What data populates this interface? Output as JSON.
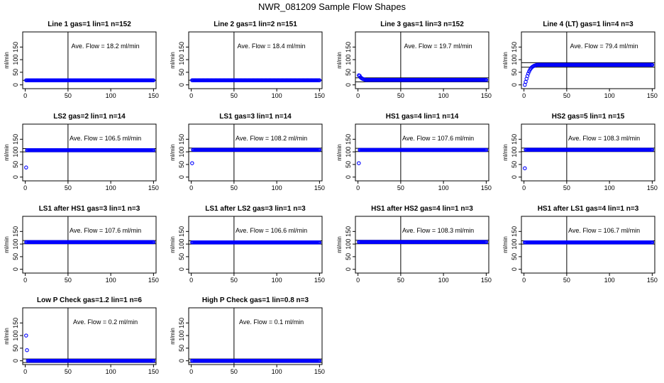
{
  "figure_title": "NWR_081209  Sample Flow Shapes",
  "colors": {
    "points": "#0000ff",
    "axes": "#000000",
    "background": "#ffffff"
  },
  "chart_data": [
    {
      "type": "scatter",
      "title": "Line 1 gas=1 lin=1 n=152",
      "ylabel": "ml/min",
      "xlim": [
        -3,
        153
      ],
      "ylim": [
        -15,
        210
      ],
      "xticks": [
        "0",
        "50",
        "100",
        "150"
      ],
      "yticks": [
        "0",
        "50",
        "100",
        "150"
      ],
      "avg_label": "Ave. Flow =  18.2  ml/min",
      "hlines": [
        18.2
      ],
      "vline": 50,
      "series_value": 18.2,
      "early_points": []
    },
    {
      "type": "scatter",
      "title": "Line 2 gas=1 lin=2 n=151",
      "ylabel": "ml/min",
      "xlim": [
        -3,
        153
      ],
      "ylim": [
        -15,
        210
      ],
      "xticks": [
        "0",
        "50",
        "100",
        "150"
      ],
      "yticks": [
        "0",
        "50",
        "100",
        "150"
      ],
      "avg_label": "Ave. Flow =  18.4  ml/min",
      "hlines": [
        18.4
      ],
      "vline": 50,
      "series_value": 18.4,
      "early_points": []
    },
    {
      "type": "scatter",
      "title": "Line 3 gas=1 lin=3 n=152",
      "ylabel": "ml/min",
      "xlim": [
        -3,
        153
      ],
      "ylim": [
        -15,
        210
      ],
      "xticks": [
        "0",
        "50",
        "100",
        "150"
      ],
      "yticks": [
        "0",
        "50",
        "100",
        "150"
      ],
      "avg_label": "Ave. Flow =  19.7  ml/min",
      "hlines": [
        12,
        28
      ],
      "vline": 50,
      "series_value": 19.7,
      "early_points": [
        [
          1,
          38
        ],
        [
          2,
          36
        ],
        [
          3,
          30
        ],
        [
          4,
          27
        ],
        [
          5,
          25
        ],
        [
          6,
          23
        ],
        [
          7,
          22
        ],
        [
          8,
          21
        ]
      ]
    },
    {
      "type": "scatter",
      "title": "Line 4 (LT) gas=1 lin=4 n=3",
      "ylabel": "ml/min",
      "xlim": [
        -3,
        153
      ],
      "ylim": [
        -15,
        210
      ],
      "xticks": [
        "0",
        "50",
        "100",
        "150"
      ],
      "yticks": [
        "0",
        "50",
        "100",
        "150"
      ],
      "avg_label": "Ave. Flow =  79.4  ml/min",
      "hlines": [
        70,
        88
      ],
      "vline": 50,
      "series_value": 79.4,
      "early_points": [
        [
          1,
          0
        ],
        [
          2,
          12
        ],
        [
          3,
          24
        ],
        [
          4,
          35
        ],
        [
          5,
          45
        ],
        [
          6,
          53
        ],
        [
          7,
          60
        ],
        [
          8,
          65
        ],
        [
          9,
          69
        ],
        [
          10,
          72
        ],
        [
          11,
          74
        ],
        [
          12,
          76
        ],
        [
          13,
          77
        ],
        [
          14,
          78
        ]
      ]
    },
    {
      "type": "scatter",
      "title": "LS2 gas=2 lin=1 n=14",
      "ylabel": "ml/min",
      "xlim": [
        -3,
        153
      ],
      "ylim": [
        -15,
        210
      ],
      "xticks": [
        "0",
        "50",
        "100",
        "150"
      ],
      "yticks": [
        "0",
        "50",
        "100",
        "150"
      ],
      "avg_label": "Ave. Flow =  106.5  ml/min",
      "hlines": [
        100,
        113
      ],
      "vline": 50,
      "series_value": 106.5,
      "early_points": [
        [
          1,
          38
        ]
      ]
    },
    {
      "type": "scatter",
      "title": "LS1 gas=3 lin=1 n=14",
      "ylabel": "ml/min",
      "xlim": [
        -3,
        153
      ],
      "ylim": [
        -15,
        210
      ],
      "xticks": [
        "0",
        "50",
        "100",
        "150"
      ],
      "yticks": [
        "0",
        "50",
        "100",
        "150"
      ],
      "avg_label": "Ave. Flow =  108.2  ml/min",
      "hlines": [
        101,
        115
      ],
      "vline": 50,
      "series_value": 108.2,
      "early_points": [
        [
          1,
          55
        ]
      ]
    },
    {
      "type": "scatter",
      "title": "HS1 gas=4 lin=1 n=14",
      "ylabel": "ml/min",
      "xlim": [
        -3,
        153
      ],
      "ylim": [
        -15,
        210
      ],
      "xticks": [
        "0",
        "50",
        "100",
        "150"
      ],
      "yticks": [
        "0",
        "50",
        "100",
        "150"
      ],
      "avg_label": "Ave. Flow =  107.6  ml/min",
      "hlines": [
        101,
        114
      ],
      "vline": 50,
      "series_value": 107.6,
      "early_points": [
        [
          1,
          55
        ]
      ]
    },
    {
      "type": "scatter",
      "title": "HS2 gas=5 lin=1 n=15",
      "ylabel": "ml/min",
      "xlim": [
        -3,
        153
      ],
      "ylim": [
        -15,
        210
      ],
      "xticks": [
        "0",
        "50",
        "100",
        "150"
      ],
      "yticks": [
        "0",
        "50",
        "100",
        "150"
      ],
      "avg_label": "Ave. Flow =  108.3  ml/min",
      "hlines": [
        101,
        115
      ],
      "vline": 50,
      "series_value": 108.3,
      "early_points": [
        [
          1,
          35
        ]
      ]
    },
    {
      "type": "scatter",
      "title": "LS1 after HS1 gas=3 lin=1 n=3",
      "ylabel": "ml/min",
      "xlim": [
        -3,
        153
      ],
      "ylim": [
        -15,
        210
      ],
      "xticks": [
        "0",
        "50",
        "100",
        "150"
      ],
      "yticks": [
        "0",
        "50",
        "100",
        "150"
      ],
      "avg_label": "Ave. Flow =  107.6  ml/min",
      "hlines": [
        101,
        114
      ],
      "vline": 50,
      "series_value": 107.6,
      "early_points": []
    },
    {
      "type": "scatter",
      "title": "LS1 after LS2 gas=3 lin=1 n=3",
      "ylabel": "ml/min",
      "xlim": [
        -3,
        153
      ],
      "ylim": [
        -15,
        210
      ],
      "xticks": [
        "0",
        "50",
        "100",
        "150"
      ],
      "yticks": [
        "0",
        "50",
        "100",
        "150"
      ],
      "avg_label": "Ave. Flow =  106.6  ml/min",
      "hlines": [
        100,
        113
      ],
      "vline": 50,
      "series_value": 106.6,
      "early_points": []
    },
    {
      "type": "scatter",
      "title": "HS1 after HS2 gas=4 lin=1 n=3",
      "ylabel": "ml/min",
      "xlim": [
        -3,
        153
      ],
      "ylim": [
        -15,
        210
      ],
      "xticks": [
        "0",
        "50",
        "100",
        "150"
      ],
      "yticks": [
        "0",
        "50",
        "100",
        "150"
      ],
      "avg_label": "Ave. Flow =  108.3  ml/min",
      "hlines": [
        101,
        115
      ],
      "vline": 50,
      "series_value": 108.3,
      "early_points": []
    },
    {
      "type": "scatter",
      "title": "HS1 after LS1 gas=4 lin=1 n=3",
      "ylabel": "ml/min",
      "xlim": [
        -3,
        153
      ],
      "ylim": [
        -15,
        210
      ],
      "xticks": [
        "0",
        "50",
        "100",
        "150"
      ],
      "yticks": [
        "0",
        "50",
        "100",
        "150"
      ],
      "avg_label": "Ave. Flow =  106.7  ml/min",
      "hlines": [
        100,
        113
      ],
      "vline": 50,
      "series_value": 106.7,
      "early_points": []
    },
    {
      "type": "scatter",
      "title": "Low P Check gas=1.2 lin=1 n=6",
      "ylabel": "ml/min",
      "xlim": [
        -3,
        153
      ],
      "ylim": [
        -15,
        210
      ],
      "xticks": [
        "0",
        "50",
        "100",
        "150"
      ],
      "yticks": [
        "0",
        "50",
        "100",
        "150"
      ],
      "avg_label": "Ave. Flow =  0.2  ml/min",
      "hlines": [
        -7,
        7
      ],
      "vline": 50,
      "series_value": 0.2,
      "early_points": [
        [
          1,
          100
        ],
        [
          2,
          42
        ]
      ]
    },
    {
      "type": "scatter",
      "title": "High P Check gas=1 lin=0.8 n=3",
      "ylabel": "ml/min",
      "xlim": [
        -3,
        153
      ],
      "ylim": [
        -15,
        210
      ],
      "xticks": [
        "0",
        "50",
        "100",
        "150"
      ],
      "yticks": [
        "0",
        "50",
        "100",
        "150"
      ],
      "avg_label": "Ave. Flow =  0.1  ml/min",
      "hlines": [
        -7,
        7
      ],
      "vline": 50,
      "series_value": 0.1,
      "early_points": []
    }
  ]
}
